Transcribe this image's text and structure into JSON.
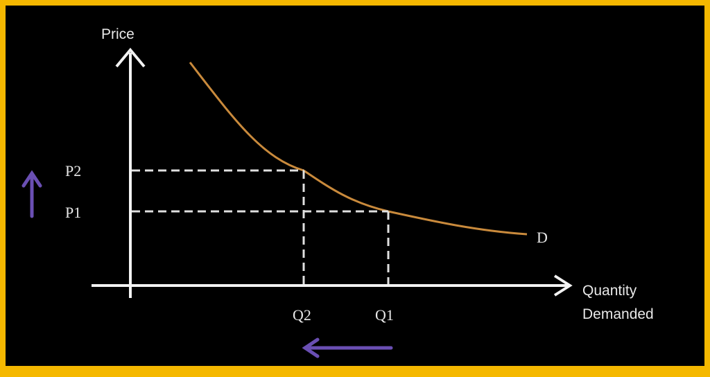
{
  "diagram": {
    "y_axis_label": "Price",
    "x_axis_label_line1": "Quantity",
    "x_axis_label_line2": "Demanded",
    "curve_label": "D",
    "price_labels": [
      "P2",
      "P1"
    ],
    "quantity_labels": [
      "Q2",
      "Q1"
    ],
    "colors": {
      "frame": "#f5b800",
      "background": "#000000",
      "axes": "#f2f2f2",
      "curve": "#c98a3c",
      "guides": "#e0e0e0",
      "arrows": "#6a4fb3"
    },
    "arrow_icons": [
      "up-arrow-icon",
      "left-arrow-icon"
    ]
  }
}
